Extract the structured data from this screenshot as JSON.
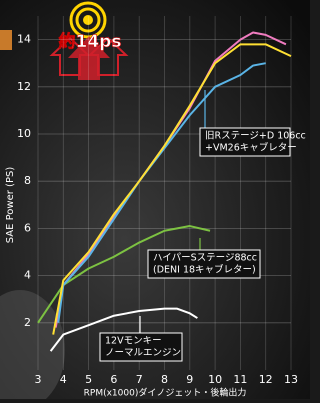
{
  "chart_data": {
    "type": "line",
    "badge": "約14ps",
    "ylabel": "SAE Power (PS)",
    "xlabel": "RPM(x1000)ダイノジェット・後輪出力",
    "xlim": [
      3,
      13
    ],
    "xticks": [
      3,
      4,
      5,
      6,
      7,
      8,
      9,
      10,
      11,
      12,
      13
    ],
    "ylim": [
      0,
      15
    ],
    "yticks": [
      2,
      4,
      6,
      8,
      10,
      12,
      14
    ],
    "grid": true,
    "series": [
      {
        "color": "#ffffff",
        "x": [
          3.5,
          4,
          5,
          6,
          7,
          8,
          8.5,
          9,
          9.3
        ],
        "values": [
          0.8,
          1.5,
          1.9,
          2.3,
          2.5,
          2.6,
          2.6,
          2.4,
          2.2
        ]
      },
      {
        "color": "#7dc242",
        "x": [
          3,
          3.5,
          4,
          5,
          6,
          7,
          8,
          9,
          9.8
        ],
        "values": [
          2.0,
          2.8,
          3.6,
          4.3,
          4.8,
          5.4,
          5.9,
          6.1,
          5.9
        ]
      },
      {
        "color": "#f07cc0",
        "x": [
          3.7,
          4,
          5,
          6,
          7,
          8,
          9,
          10,
          11,
          11.5,
          12,
          12.8
        ],
        "values": [
          1.8,
          3.6,
          4.9,
          6.5,
          8.0,
          9.5,
          11.1,
          13.1,
          14.0,
          14.3,
          14.2,
          13.8
        ]
      },
      {
        "color": "#5ab4e6",
        "x": [
          3.8,
          4,
          5,
          6,
          7,
          8,
          9,
          10,
          11,
          11.5,
          12
        ],
        "values": [
          2.0,
          3.6,
          4.8,
          6.4,
          8.0,
          9.4,
          10.8,
          12.0,
          12.5,
          12.9,
          13.0
        ]
      },
      {
        "color": "#ffe033",
        "x": [
          3.6,
          4,
          5,
          6,
          7,
          8,
          9,
          10,
          11,
          12,
          13
        ],
        "values": [
          1.5,
          3.8,
          5.0,
          6.6,
          8.0,
          9.5,
          11.2,
          13.0,
          13.8,
          13.8,
          13.3
        ]
      }
    ],
    "annotations": [
      {
        "lines": [
          "旧Rステージ+D 106cc",
          "+VM26キャブレター"
        ]
      },
      {
        "lines": [
          "ハイパーSステージ88cc",
          "(DENI 18キャブレター)"
        ]
      },
      {
        "lines": [
          "12Vモンキー",
          "ノーマルエンジン"
        ]
      }
    ]
  }
}
